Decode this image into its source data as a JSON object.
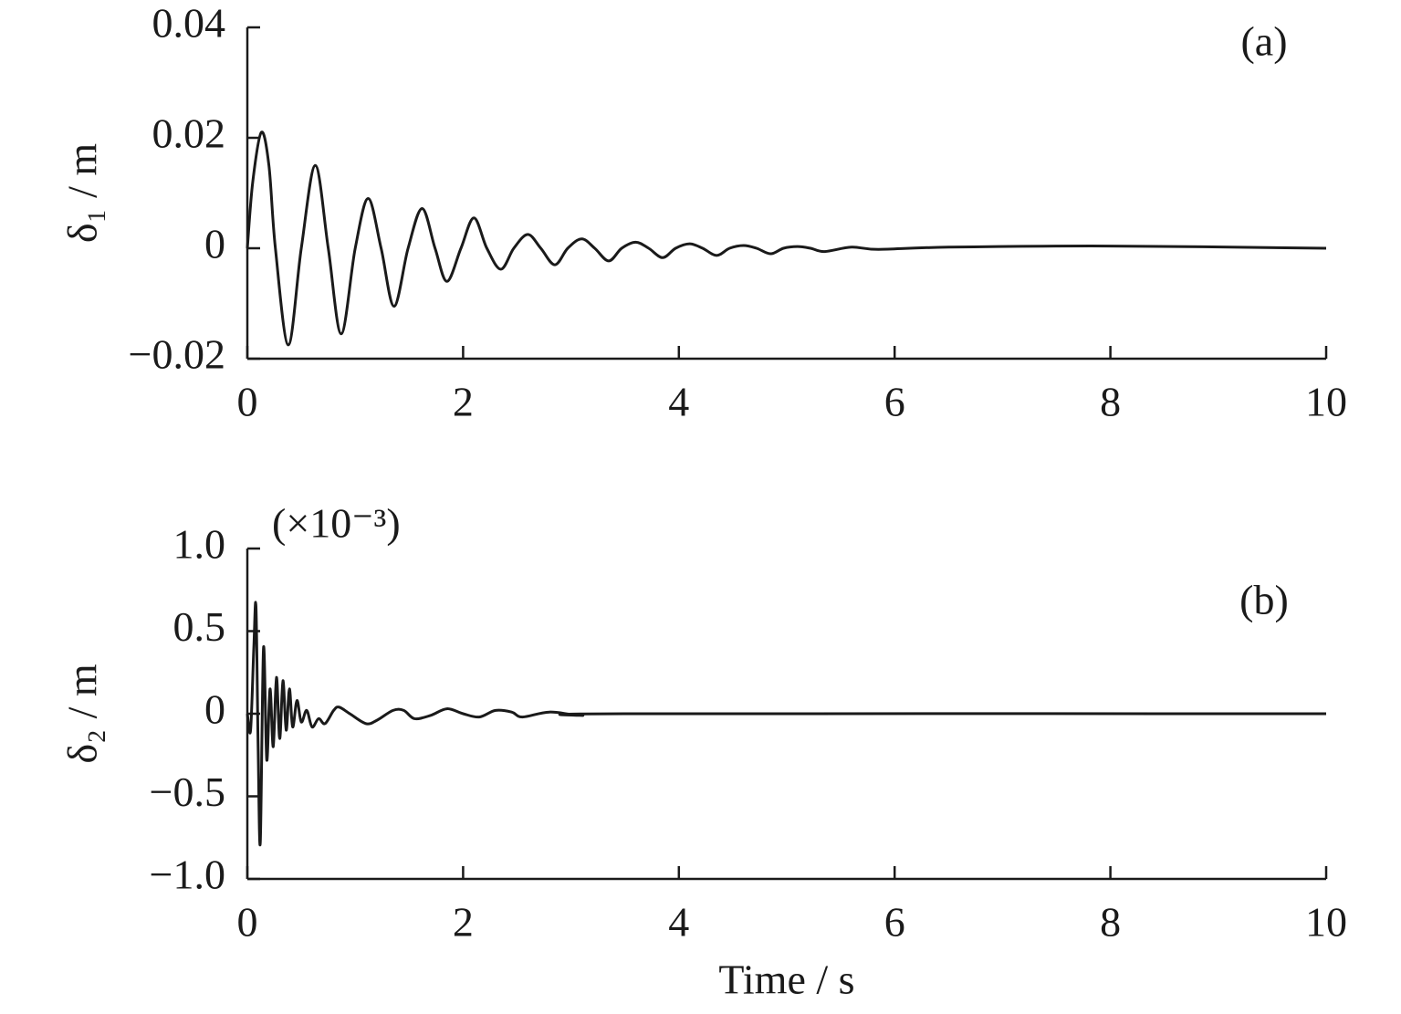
{
  "chart_data": [
    {
      "type": "line",
      "ylabel": "δ₁ / m",
      "annotations": [
        "(a)"
      ],
      "x": [
        0,
        0.05,
        0.13,
        0.2,
        0.26,
        0.38,
        0.5,
        0.63,
        0.75,
        0.87,
        1.0,
        1.12,
        1.24,
        1.36,
        1.49,
        1.62,
        1.74,
        1.85,
        1.98,
        2.1,
        2.22,
        2.35,
        2.47,
        2.6,
        2.72,
        2.85,
        2.97,
        3.1,
        3.22,
        3.35,
        3.47,
        3.6,
        3.72,
        3.85,
        3.97,
        4.1,
        4.22,
        4.35,
        4.47,
        4.6,
        4.72,
        4.85,
        4.97,
        5.1,
        5.22,
        5.35,
        5.6,
        5.85,
        6.5,
        8,
        10
      ],
      "values": [
        0,
        0.012,
        0.021,
        0.015,
        0,
        -0.0175,
        0,
        0.015,
        0,
        -0.0155,
        0,
        0.009,
        0,
        -0.0105,
        0,
        0.0072,
        0,
        -0.006,
        0,
        0.0055,
        0,
        -0.0038,
        0,
        0.0025,
        0,
        -0.003,
        0,
        0.0017,
        0,
        -0.0023,
        0,
        0.0011,
        0,
        -0.0017,
        0,
        0.0008,
        0,
        -0.0013,
        0,
        0.0005,
        0,
        -0.001,
        0,
        0.0003,
        0,
        -0.0006,
        0.0002,
        -0.0002,
        0.0002,
        0.0004,
        0
      ],
      "color": "#1a1a1a",
      "xlim": [
        0,
        10
      ],
      "xticks": [
        0,
        2,
        4,
        6,
        8,
        10
      ],
      "ylim": [
        -0.02,
        0.04
      ],
      "yticks": [
        {
          "value": -0.02,
          "label": "−0.02"
        },
        0,
        0.02,
        0.04
      ]
    },
    {
      "type": "line",
      "xlabel": "Time / s",
      "ylabel": "δ₂ / m",
      "annotations": [
        "(b)",
        "(×10⁻³)"
      ],
      "x": [
        0,
        0.03,
        0.06,
        0.08,
        0.1,
        0.12,
        0.15,
        0.18,
        0.21,
        0.24,
        0.27,
        0.3,
        0.33,
        0.36,
        0.39,
        0.42,
        0.46,
        0.5,
        0.55,
        0.6,
        0.66,
        0.72,
        0.8,
        0.85,
        0.95,
        1.1,
        1.2,
        1.35,
        1.45,
        1.55,
        1.7,
        1.85,
        2.0,
        2.15,
        2.3,
        2.45,
        2.55,
        2.8,
        3.1,
        3.5,
        10
      ],
      "values": [
        0,
        -0.1,
        0.4,
        0.65,
        -0.2,
        -0.78,
        0.4,
        -0.28,
        0.15,
        -0.2,
        0.22,
        -0.15,
        0.2,
        -0.1,
        0.15,
        -0.08,
        0.08,
        -0.05,
        0.02,
        -0.08,
        -0.03,
        -0.06,
        0.02,
        0.04,
        0,
        -0.06,
        -0.04,
        0.02,
        0.02,
        -0.03,
        -0.01,
        0.03,
        0,
        -0.02,
        0.02,
        0.01,
        -0.02,
        0.01,
        -0.01,
        0,
        0
      ],
      "color": "#1a1a1a",
      "xlim": [
        0,
        10
      ],
      "xticks": [
        0,
        2,
        4,
        6,
        8,
        10
      ],
      "ylim": [
        -1,
        1
      ],
      "yticks": [
        {
          "value": -1,
          "label": "−1.0"
        },
        {
          "value": -0.5,
          "label": "−0.5"
        },
        0,
        0.5,
        {
          "value": 1,
          "label": "1.0"
        }
      ]
    }
  ]
}
